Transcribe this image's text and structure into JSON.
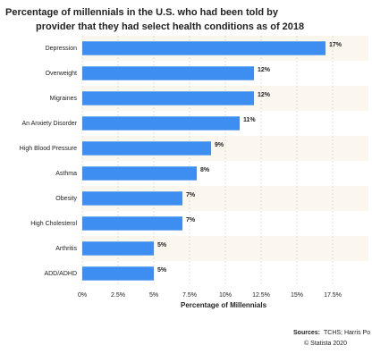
{
  "chart_data": {
    "type": "bar",
    "orientation": "horizontal",
    "title": "Percentage of millennials in the U.S. who had been told by",
    "subtitle": "provider that they had select health conditions as of 2018",
    "categories": [
      "Depression",
      "Overweight",
      "Migraines",
      "An Anxiety Disorder",
      "High Blood Pressure",
      "Asthma",
      "Obesity",
      "High Cholesterol",
      "Arthritis",
      "ADD/ADHD"
    ],
    "values": [
      17,
      12,
      12,
      11,
      9,
      8,
      7,
      7,
      5,
      5
    ],
    "value_labels": [
      "17%",
      "12%",
      "12%",
      "11%",
      "9%",
      "8%",
      "7%",
      "7%",
      "5%",
      "5%"
    ],
    "color": "#3d8ef0",
    "xlim": [
      0,
      20
    ],
    "xticks": [
      {
        "value": 0,
        "label": "0%"
      },
      {
        "value": 2.5,
        "label": "2.5%"
      },
      {
        "value": 5,
        "label": "5%"
      },
      {
        "value": 7.5,
        "label": "7.5%"
      },
      {
        "value": 10,
        "label": "10%"
      },
      {
        "value": 12.5,
        "label": "12.5%"
      },
      {
        "value": 15,
        "label": "15%"
      },
      {
        "value": 17.5,
        "label": "17.5%"
      }
    ],
    "xlabel": "Percentage of Millennials",
    "grid": true,
    "source_label": "Sources:",
    "source": "TCHS; Harris Po",
    "copyright": "© Statista 2020"
  }
}
